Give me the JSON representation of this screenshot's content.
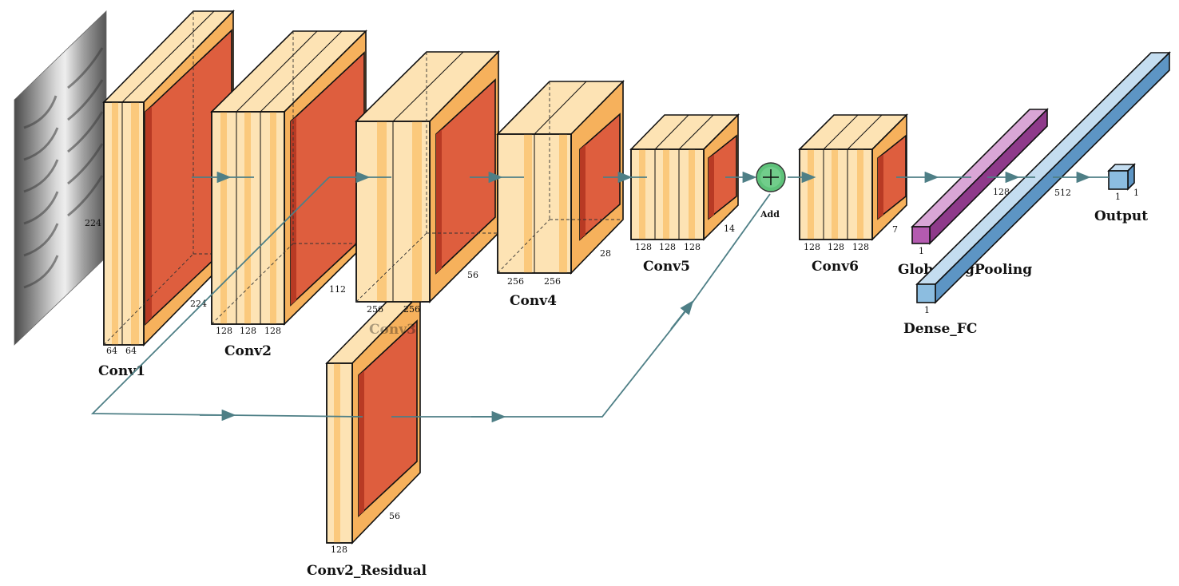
{
  "input_label": "224",
  "layers": {
    "conv1": {
      "name": "Conv1",
      "channels": [
        "64",
        "64"
      ],
      "size": "224"
    },
    "conv2": {
      "name": "Conv2",
      "channels": [
        "128",
        "128",
        "128"
      ],
      "size": "112"
    },
    "conv3": {
      "name": "Conv3",
      "channels": [
        "256",
        "256"
      ],
      "size": "56"
    },
    "conv4": {
      "name": "Conv4",
      "channels": [
        "256",
        "256"
      ],
      "size": "28"
    },
    "conv5": {
      "name": "Conv5",
      "channels": [
        "128",
        "128",
        "128"
      ],
      "size": "14"
    },
    "conv6": {
      "name": "Conv6",
      "channels": [
        "128",
        "128",
        "128"
      ],
      "size": "7"
    },
    "residual": {
      "name": "Conv2_Residual",
      "channels": [
        "128"
      ],
      "size": "56"
    },
    "add": {
      "name": "Add"
    },
    "gap": {
      "name": "GlobalAvgPooling",
      "size_a": "128",
      "size_b": "1"
    },
    "dense": {
      "name": "Dense_FC",
      "size_a": "512",
      "size_b": "1"
    },
    "output": {
      "name": "Output",
      "size_a": "1",
      "size_b": "1"
    }
  },
  "colors": {
    "conv_light": "#fde3b4",
    "conv_mid": "#fbc97c",
    "conv_side": "#f6b15c",
    "pool_face": "#de5e3e",
    "pool_side": "#b83a24",
    "gap_face": "#b45bb0",
    "dense_face": "#8cbde0",
    "add_fill": "#5ec27a",
    "arrow": "#4e7f86"
  }
}
